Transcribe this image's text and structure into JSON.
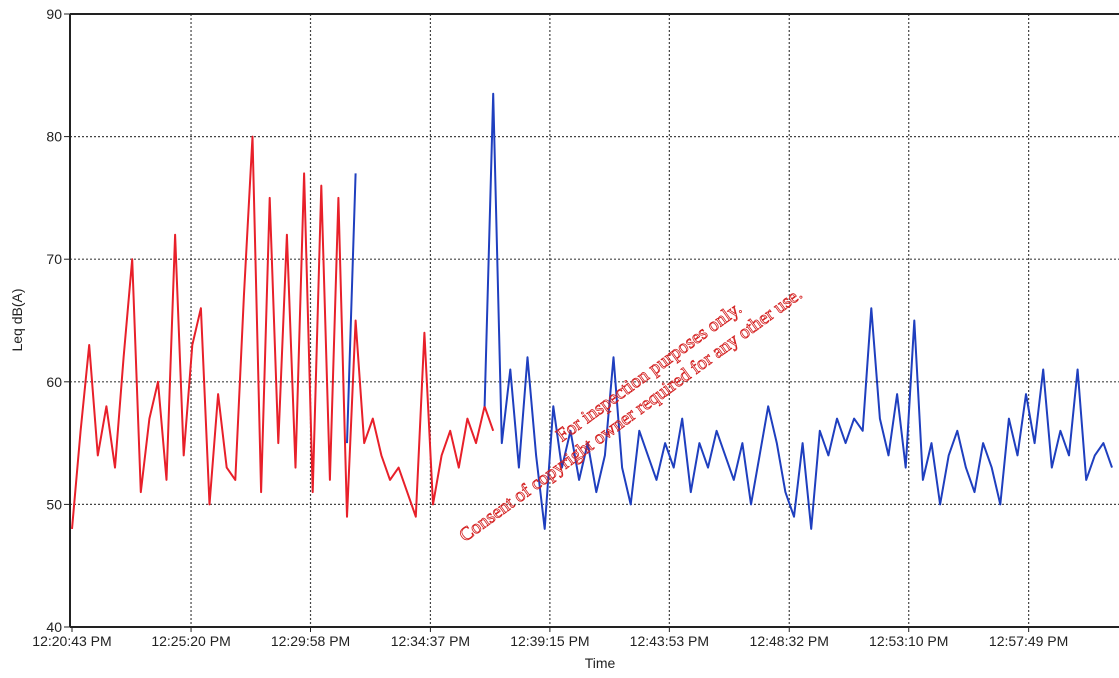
{
  "chart_data": {
    "type": "line",
    "x_label": "Time",
    "y_label": "Leq dB(A)",
    "annotations": [
      "For inspection purposes only.",
      "Consent of copyright owner required for any other use."
    ],
    "x": [
      "12:20:43 PM",
      "12:21:03 PM",
      "12:21:23 PM",
      "12:21:43 PM",
      "12:22:03 PM",
      "12:22:23 PM",
      "12:22:43 PM",
      "12:23:03 PM",
      "12:23:23 PM",
      "12:23:43 PM",
      "12:24:03 PM",
      "12:24:23 PM",
      "12:24:43 PM",
      "12:25:03 PM",
      "12:25:23 PM",
      "12:25:43 PM",
      "12:26:03 PM",
      "12:26:23 PM",
      "12:26:43 PM",
      "12:27:03 PM",
      "12:27:23 PM",
      "12:27:43 PM",
      "12:28:03 PM",
      "12:28:23 PM",
      "12:28:43 PM",
      "12:29:03 PM",
      "12:29:23 PM",
      "12:29:43 PM",
      "12:30:03 PM",
      "12:30:23 PM",
      "12:30:43 PM",
      "12:31:03 PM",
      "12:31:23 PM",
      "12:31:43 PM",
      "12:32:03 PM",
      "12:32:23 PM",
      "12:32:43 PM",
      "12:33:03 PM",
      "12:33:23 PM",
      "12:33:43 PM",
      "12:34:03 PM",
      "12:34:23 PM",
      "12:34:43 PM",
      "12:35:03 PM",
      "12:35:23 PM",
      "12:35:43 PM",
      "12:36:03 PM",
      "12:36:23 PM",
      "12:36:43 PM",
      "12:37:03 PM",
      "12:37:23 PM",
      "12:37:43 PM",
      "12:38:03 PM",
      "12:38:23 PM",
      "12:38:43 PM",
      "12:39:03 PM",
      "12:39:23 PM",
      "12:39:43 PM",
      "12:40:03 PM",
      "12:40:23 PM",
      "12:40:43 PM",
      "12:41:03 PM",
      "12:41:23 PM",
      "12:41:43 PM",
      "12:42:03 PM",
      "12:42:23 PM",
      "12:42:43 PM",
      "12:43:03 PM",
      "12:43:23 PM",
      "12:43:43 PM",
      "12:44:03 PM",
      "12:44:23 PM",
      "12:44:43 PM",
      "12:45:03 PM",
      "12:45:23 PM",
      "12:45:43 PM",
      "12:46:03 PM",
      "12:46:23 PM",
      "12:46:43 PM",
      "12:47:03 PM",
      "12:47:23 PM",
      "12:47:43 PM",
      "12:48:03 PM",
      "12:48:23 PM",
      "12:48:43 PM",
      "12:49:03 PM",
      "12:49:23 PM",
      "12:49:43 PM",
      "12:50:03 PM",
      "12:50:23 PM",
      "12:50:43 PM",
      "12:51:03 PM",
      "12:51:23 PM",
      "12:51:43 PM",
      "12:52:03 PM",
      "12:52:23 PM",
      "12:52:43 PM",
      "12:53:03 PM",
      "12:53:23 PM",
      "12:53:43 PM",
      "12:54:03 PM",
      "12:54:23 PM",
      "12:54:43 PM",
      "12:55:03 PM",
      "12:55:23 PM",
      "12:55:43 PM",
      "12:56:03 PM",
      "12:56:23 PM",
      "12:56:43 PM",
      "12:57:03 PM",
      "12:57:23 PM",
      "12:57:43 PM",
      "12:58:03 PM",
      "12:58:23 PM",
      "12:58:43 PM",
      "12:59:03 PM",
      "12:59:23 PM",
      "12:59:43 PM",
      "1:00:03 PM",
      "1:00:23 PM",
      "1:00:43 PM",
      "1:01:03 PM"
    ],
    "series": [
      {
        "color": "#e8202a",
        "values": [
          48,
          56,
          63,
          54,
          58,
          53,
          62,
          70,
          51,
          57,
          60,
          52,
          72,
          54,
          63,
          66,
          50,
          59,
          53,
          52,
          67,
          80,
          51,
          75,
          55,
          72,
          53,
          77,
          51,
          76,
          52,
          75,
          49,
          65,
          55,
          57,
          54,
          52,
          53,
          51,
          49,
          64,
          50,
          54,
          56,
          53,
          57,
          55,
          58,
          56,
          null,
          null,
          null,
          null,
          null,
          null,
          null,
          null,
          null,
          null,
          null,
          null,
          null,
          null,
          null,
          null,
          null,
          null,
          null,
          null,
          null,
          null,
          null,
          null,
          null,
          null,
          null,
          null,
          null,
          null,
          null,
          null,
          null,
          null,
          null,
          null,
          null,
          null,
          null,
          null,
          null,
          null,
          null,
          null,
          null,
          null,
          null,
          null,
          null,
          null,
          null,
          null,
          null,
          null,
          null,
          null,
          null,
          null,
          null,
          null,
          null,
          null,
          null,
          null,
          null,
          null,
          null,
          null,
          null,
          null,
          null,
          null
        ]
      },
      {
        "color": "#1f3fbf",
        "values": [
          null,
          null,
          null,
          null,
          null,
          null,
          null,
          null,
          null,
          null,
          null,
          null,
          null,
          null,
          null,
          null,
          null,
          null,
          null,
          null,
          null,
          null,
          null,
          null,
          null,
          null,
          null,
          null,
          null,
          null,
          null,
          null,
          55,
          77,
          null,
          null,
          null,
          null,
          null,
          null,
          null,
          null,
          null,
          null,
          null,
          null,
          null,
          null,
          58,
          83.5,
          55,
          61,
          53,
          62,
          54,
          48,
          58,
          53,
          56,
          52,
          55,
          51,
          54,
          62,
          53,
          50,
          56,
          54,
          52,
          55,
          53,
          57,
          51,
          55,
          53,
          56,
          54,
          52,
          55,
          50,
          54,
          58,
          55,
          51,
          49,
          55,
          48,
          56,
          54,
          57,
          55,
          57,
          56,
          66,
          57,
          54,
          59,
          53,
          65,
          52,
          55,
          50,
          54,
          56,
          53,
          51,
          55,
          53,
          50,
          57,
          54,
          59,
          55,
          61,
          53,
          56,
          54,
          61,
          52,
          54,
          55,
          53
        ]
      }
    ],
    "xlim": [
      "12:20:43 PM",
      "1:01:03 PM"
    ],
    "xticks": [
      "12:20:43 PM",
      "12:25:20 PM",
      "12:29:58 PM",
      "12:34:37 PM",
      "12:39:15 PM",
      "12:43:53 PM",
      "12:48:32 PM",
      "12:53:10 PM",
      "12:57:49 PM"
    ],
    "ylim": [
      40,
      90
    ],
    "yticks": [
      40,
      50,
      60,
      70,
      80,
      90
    ],
    "grid": true
  }
}
